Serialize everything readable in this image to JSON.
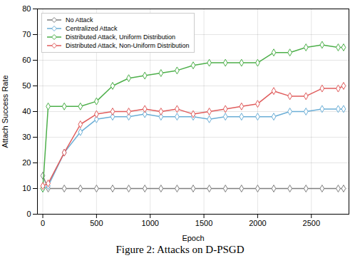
{
  "chart_data": {
    "type": "line",
    "title": "Figure 2: Attacks on D-PSGD",
    "xlabel": "Epoch",
    "ylabel": "Attach Success Rate",
    "xlim": [
      -50,
      2850
    ],
    "ylim": [
      0,
      80
    ],
    "xticks": [
      0,
      500,
      1000,
      1500,
      2000,
      2500
    ],
    "yticks": [
      0,
      10,
      20,
      30,
      40,
      50,
      60,
      70,
      80
    ],
    "grid": true,
    "legend": "upper left",
    "marker": "diamond",
    "x": [
      0,
      50,
      200,
      350,
      500,
      650,
      800,
      950,
      1100,
      1250,
      1400,
      1550,
      1700,
      1850,
      2000,
      2150,
      2300,
      2450,
      2600,
      2750,
      2800
    ],
    "series": [
      {
        "name": "No Attack",
        "color": "#7f7f7f",
        "values": [
          15,
          10,
          10,
          10,
          10,
          10,
          10,
          10,
          10,
          10,
          10,
          10,
          10,
          10,
          10,
          10,
          10,
          10,
          10,
          10,
          10
        ]
      },
      {
        "name": "Centralized Attack",
        "color": "#6baed6",
        "values": [
          10,
          11,
          24,
          32,
          37,
          38,
          38,
          39,
          38,
          38,
          38,
          37,
          38,
          38,
          38,
          38,
          40,
          40,
          41,
          41,
          41
        ]
      },
      {
        "name": "Distributed Attack, Uniform Distribution",
        "color": "#4daf4a",
        "values": [
          10,
          42,
          42,
          42,
          44,
          50,
          53,
          54,
          55,
          56,
          58,
          59,
          59,
          59,
          59,
          63,
          63,
          65,
          66,
          65,
          65
        ]
      },
      {
        "name": "Distributed Attack, Non-Uniform Distribution",
        "color": "#e05c5c",
        "values": [
          11,
          12,
          24,
          35,
          39,
          40,
          40,
          41,
          40,
          41,
          39,
          40,
          41,
          42,
          43,
          48,
          46,
          46,
          49,
          49,
          50
        ]
      }
    ]
  }
}
